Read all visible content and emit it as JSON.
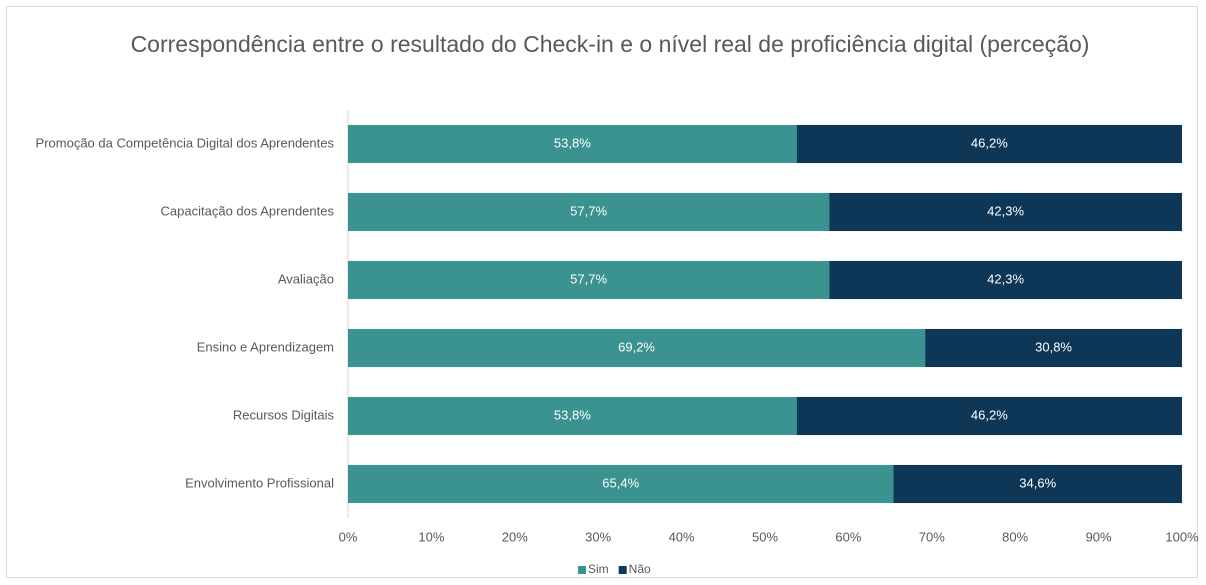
{
  "chart_data": {
    "type": "stacked-barh",
    "title": "Correspondência entre o resultado do Check-in e o  nível real de proficiência digital (perceção)",
    "categories": [
      "Promoção da Competência Digital dos Aprendentes",
      "Capacitação dos Aprendentes",
      "Avaliação",
      "Ensino e Aprendizagem",
      "Recursos Digitais",
      "Envolvimento Profissional"
    ],
    "series": [
      {
        "name": "Sim",
        "color": "#3a9291",
        "values": [
          53.8,
          57.7,
          57.7,
          69.2,
          53.8,
          65.4
        ],
        "value_labels": [
          "53,8%",
          "57,7%",
          "57,7%",
          "69,2%",
          "53,8%",
          "65,4%"
        ]
      },
      {
        "name": "Não",
        "color": "#0e3757",
        "values": [
          46.2,
          42.3,
          42.3,
          30.8,
          46.2,
          34.6
        ],
        "value_labels": [
          "46,2%",
          "42,3%",
          "42,3%",
          "30,8%",
          "46,2%",
          "34,6%"
        ]
      }
    ],
    "xlim": [
      0,
      100
    ],
    "xticks": [
      {
        "value": 0,
        "label": "0%"
      },
      {
        "value": 10,
        "label": "10%"
      },
      {
        "value": 20,
        "label": "20%"
      },
      {
        "value": 30,
        "label": "30%"
      },
      {
        "value": 40,
        "label": "40%"
      },
      {
        "value": 50,
        "label": "50%"
      },
      {
        "value": 60,
        "label": "60%"
      },
      {
        "value": 70,
        "label": "70%"
      },
      {
        "value": 80,
        "label": "80%"
      },
      {
        "value": 90,
        "label": "90%"
      },
      {
        "value": 100,
        "label": "100%"
      }
    ],
    "legend": "bottom"
  }
}
